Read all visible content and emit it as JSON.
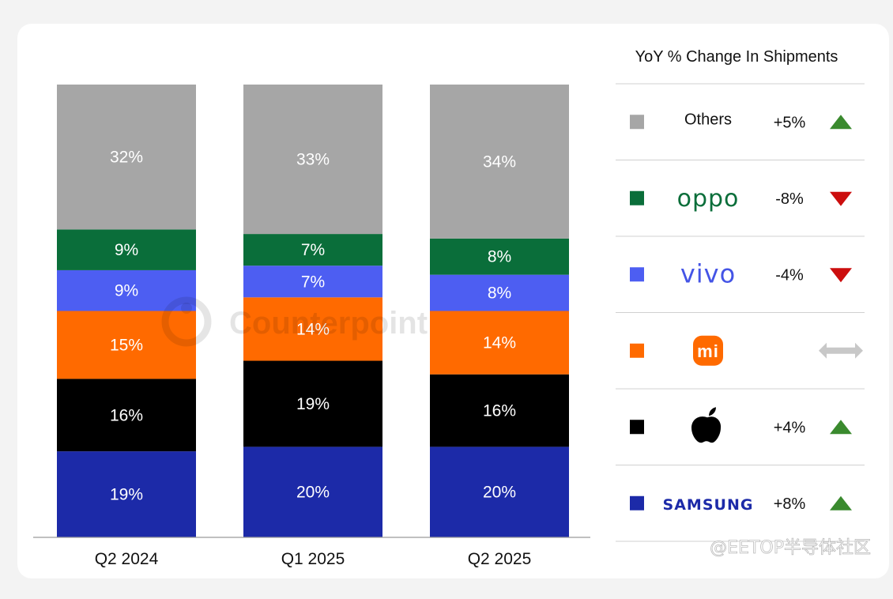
{
  "chart_data": {
    "type": "bar",
    "stacked": true,
    "unit": "%",
    "categories": [
      "Q2 2024",
      "Q1 2025",
      "Q2 2025"
    ],
    "series": [
      {
        "key": "samsung",
        "color": "#1c2aa8",
        "values": [
          19,
          20,
          20
        ],
        "labels": [
          "19%",
          "20%",
          "20%"
        ]
      },
      {
        "key": "apple",
        "color": "#000000",
        "values": [
          16,
          19,
          16
        ],
        "labels": [
          "16%",
          "19%",
          "16%"
        ]
      },
      {
        "key": "xiaomi",
        "color": "#ff6a00",
        "values": [
          15,
          14,
          14
        ],
        "labels": [
          "15%",
          "14%",
          "14%"
        ]
      },
      {
        "key": "vivo",
        "color": "#4d5ef2",
        "values": [
          9,
          7,
          8
        ],
        "labels": [
          "9%",
          "7%",
          "8%"
        ]
      },
      {
        "key": "oppo",
        "color": "#0a6e3a",
        "values": [
          9,
          7,
          8
        ],
        "labels": [
          "9%",
          "7%",
          "8%"
        ]
      },
      {
        "name": "Others",
        "key": "others",
        "color": "#a6a6a6",
        "values": [
          32,
          33,
          34
        ],
        "labels": [
          "32%",
          "33%",
          "34%"
        ]
      }
    ]
  },
  "legend": {
    "title": "YoY % Change In Shipments",
    "rows": [
      {
        "brand": "Others",
        "brand_icon": "others-text",
        "swatch": "#a6a6a6",
        "change": "+5%",
        "trend": "up"
      },
      {
        "brand": "oppo",
        "brand_icon": "oppo-logo",
        "swatch": "#0a6e3a",
        "change": "-8%",
        "trend": "down"
      },
      {
        "brand": "vivo",
        "brand_icon": "vivo-logo",
        "swatch": "#4d5ef2",
        "change": "-4%",
        "trend": "down"
      },
      {
        "brand": "mi",
        "brand_icon": "xiaomi-logo",
        "swatch": "#ff6a00",
        "change": "",
        "trend": "flat"
      },
      {
        "brand": "",
        "brand_icon": "apple-logo",
        "swatch": "#000000",
        "change": "+4%",
        "trend": "up"
      },
      {
        "brand": "SAMSUNG",
        "brand_icon": "samsung-logo",
        "swatch": "#1c2aa8",
        "change": "+8%",
        "trend": "up"
      }
    ],
    "trend_colors": {
      "up": "#3a8a2e",
      "down": "#cc0e0e",
      "flat": "#c8c8c8"
    },
    "brand_colors": {
      "oppo": "#0a6e3a",
      "vivo": "#4454e6",
      "xiaomi": "#ff6a00",
      "samsung": "#1c2aa8"
    }
  },
  "watermark": "Counterpoint",
  "credit": "@EETOP半导体社区"
}
